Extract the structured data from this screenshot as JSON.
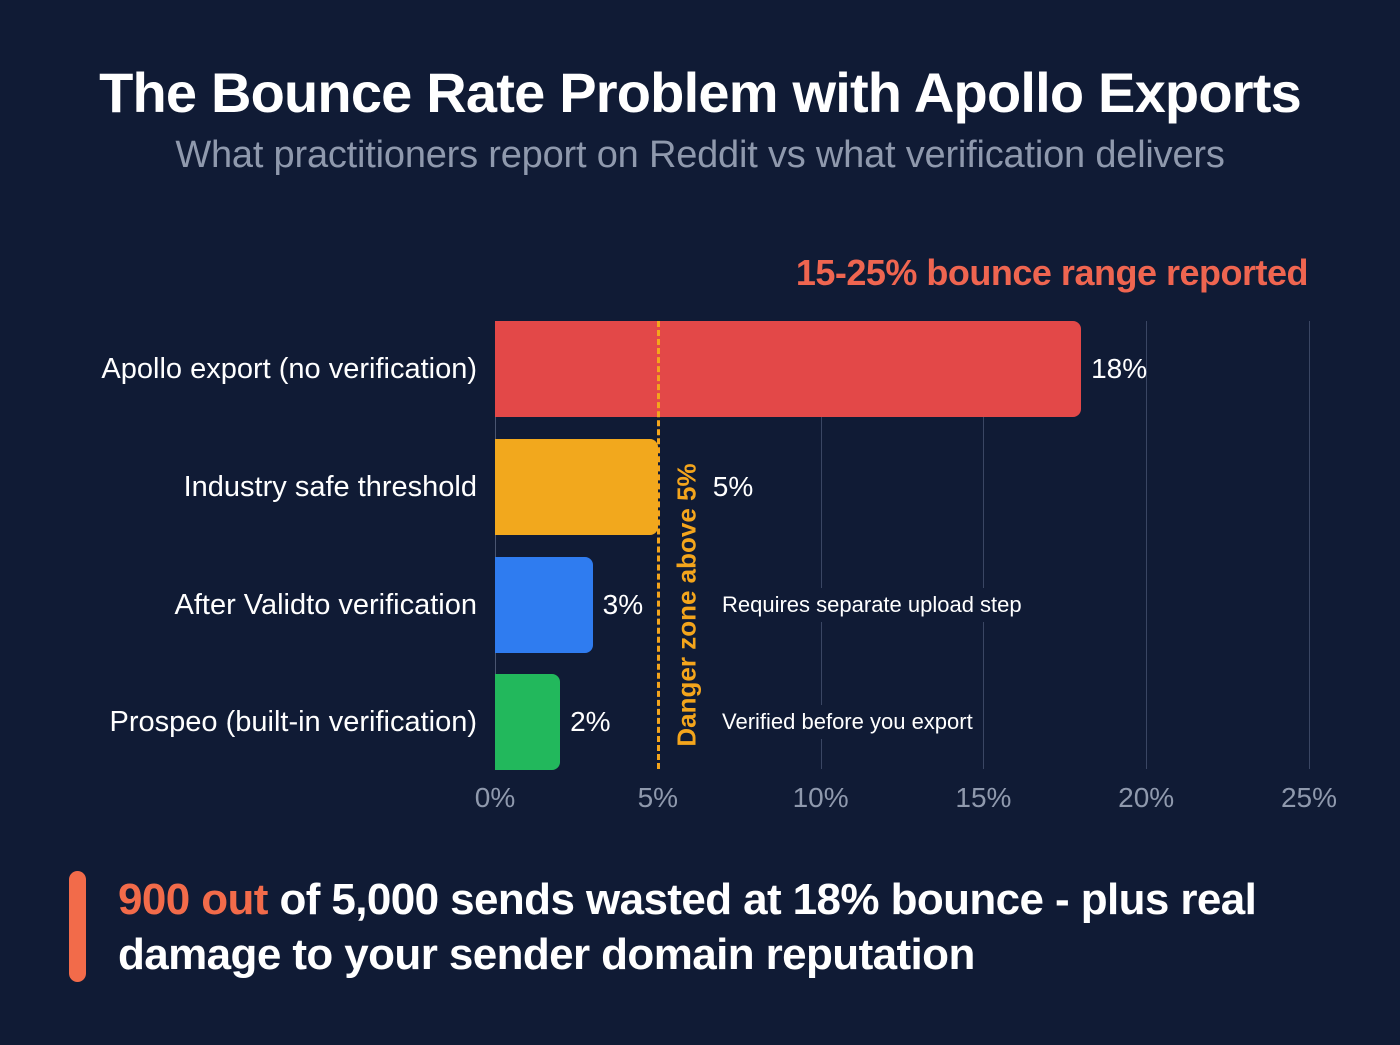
{
  "header": {
    "title": "The Bounce Rate Problem with Apollo Exports",
    "subtitle": "What practitioners report on Reddit vs what verification delivers"
  },
  "range_label": "15-25% bounce range reported",
  "threshold": {
    "value": 5,
    "label": "Danger zone above 5%",
    "color": "#f4a51c"
  },
  "callout": {
    "highlight": "900 out",
    "text": " of 5,000 sends wasted at 18% bounce - plus real damage to your sender domain reputation",
    "accent_color": "#f26b4a"
  },
  "chart_data": {
    "type": "bar",
    "orientation": "horizontal",
    "title": "The Bounce Rate Problem with Apollo Exports",
    "subtitle": "What practitioners report on Reddit vs what verification delivers",
    "categories": [
      "Apollo export (no verification)",
      "Industry safe threshold",
      "After Validto verification",
      "Prospeo (built-in verification)"
    ],
    "values": [
      18,
      5,
      3,
      2
    ],
    "value_labels": [
      "18%",
      "5%",
      "3%",
      "2%"
    ],
    "colors": [
      "#e34848",
      "#f2a81d",
      "#2f7cf0",
      "#22b85c"
    ],
    "annotations": [
      {
        "category": "After Validto verification",
        "text": "Requires separate upload step"
      },
      {
        "category": "Prospeo (built-in verification)",
        "text": "Verified before you export"
      },
      {
        "type": "vline",
        "x": 5,
        "text": "Danger zone above 5%"
      },
      {
        "type": "label",
        "text": "15-25% bounce range reported"
      }
    ],
    "xlabel": "",
    "ylabel": "",
    "xlim": [
      0,
      25
    ],
    "xticks": [
      0,
      5,
      10,
      15,
      20,
      25
    ],
    "xtick_labels": [
      "0%",
      "5%",
      "10%",
      "15%",
      "20%",
      "25%"
    ],
    "grid": true,
    "legend": "none"
  }
}
